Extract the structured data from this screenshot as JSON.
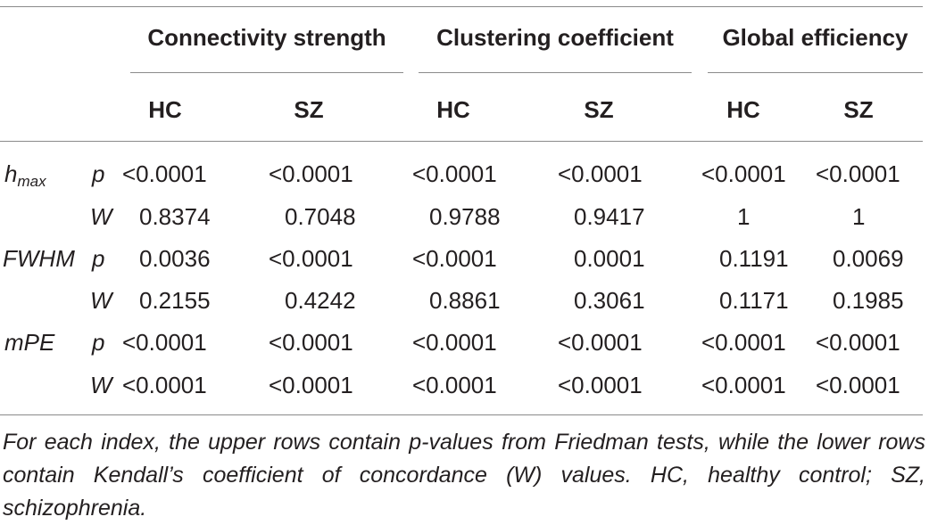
{
  "table": {
    "groups": [
      {
        "label": "Connectivity strength",
        "subs": [
          "HC",
          "SZ"
        ]
      },
      {
        "label": "Clustering coefficient",
        "subs": [
          "HC",
          "SZ"
        ]
      },
      {
        "label": "Global efficiency",
        "subs": [
          "HC",
          "SZ"
        ]
      }
    ],
    "rows": [
      {
        "metric": "h",
        "metric_sub": "max",
        "stat": "p",
        "values": [
          "<0.0001",
          "<0.0001",
          "<0.0001",
          "<0.0001",
          "<0.0001",
          "<0.0001"
        ]
      },
      {
        "metric": "",
        "metric_sub": "",
        "stat": "W",
        "values": [
          "0.8374",
          "0.7048",
          "0.9788",
          "0.9417",
          "1",
          "1"
        ]
      },
      {
        "metric": "FWHM",
        "metric_sub": "",
        "stat": "p",
        "values": [
          "0.0036",
          "<0.0001",
          "<0.0001",
          "0.0001",
          "0.1191",
          "0.0069"
        ]
      },
      {
        "metric": "",
        "metric_sub": "",
        "stat": "W",
        "values": [
          "0.2155",
          "0.4242",
          "0.8861",
          "0.3061",
          "0.1171",
          "0.1985"
        ]
      },
      {
        "metric": "mPE",
        "metric_sub": "",
        "stat": "p",
        "values": [
          "<0.0001",
          "<0.0001",
          "<0.0001",
          "<0.0001",
          "<0.0001",
          "<0.0001"
        ]
      },
      {
        "metric": "",
        "metric_sub": "",
        "stat": "W",
        "values": [
          "<0.0001",
          "<0.0001",
          "<0.0001",
          "<0.0001",
          "<0.0001",
          "<0.0001"
        ]
      }
    ]
  },
  "footnote": "For each index, the upper rows contain p-values from Friedman tests, while the lower rows contain Kendall’s coefficient of concordance (W) values. HC, healthy control; SZ, schizophrenia."
}
